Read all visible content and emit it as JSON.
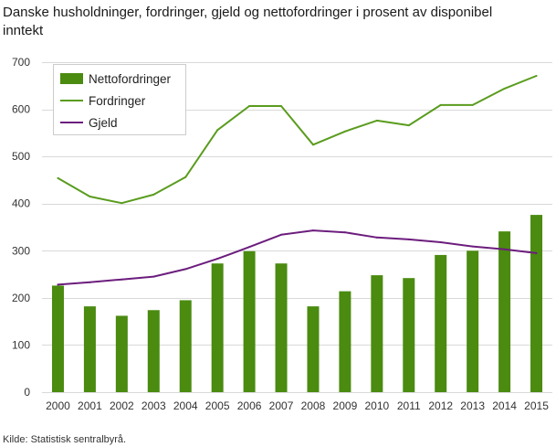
{
  "source": "Kilde: Statistisk sentralbyrå.",
  "colors": {
    "grid": "#d9d9d9",
    "legend_border": "#cccccc"
  },
  "chart_data": {
    "type": "bar",
    "title": "Danske husholdninger, fordringer, gjeld og nettofordringer i prosent av disponibel inntekt",
    "categories": [
      "2000",
      "2001",
      "2002",
      "2003",
      "2004",
      "2005",
      "2006",
      "2007",
      "2008",
      "2009",
      "2010",
      "2011",
      "2012",
      "2013",
      "2014",
      "2015"
    ],
    "ylim": [
      0,
      700
    ],
    "yticks": [
      0,
      100,
      200,
      300,
      400,
      500,
      600,
      700
    ],
    "grid": true,
    "legend_position": "top-left",
    "series": [
      {
        "name": "Nettofordringer",
        "type": "bar",
        "color": "#4a8b10",
        "values": [
          226,
          182,
          162,
          174,
          195,
          273,
          299,
          273,
          182,
          214,
          248,
          242,
          291,
          300,
          341,
          376
        ]
      },
      {
        "name": "Fordringer",
        "type": "line",
        "color": "#5a9c1e",
        "values": [
          454,
          415,
          401,
          419,
          456,
          556,
          607,
          607,
          525,
          553,
          576,
          566,
          609,
          609,
          644,
          671
        ]
      },
      {
        "name": "Gjeld",
        "type": "line",
        "color": "#6c1d7d",
        "values": [
          228,
          233,
          239,
          245,
          261,
          283,
          308,
          334,
          343,
          339,
          328,
          324,
          318,
          309,
          303,
          295
        ]
      }
    ]
  }
}
